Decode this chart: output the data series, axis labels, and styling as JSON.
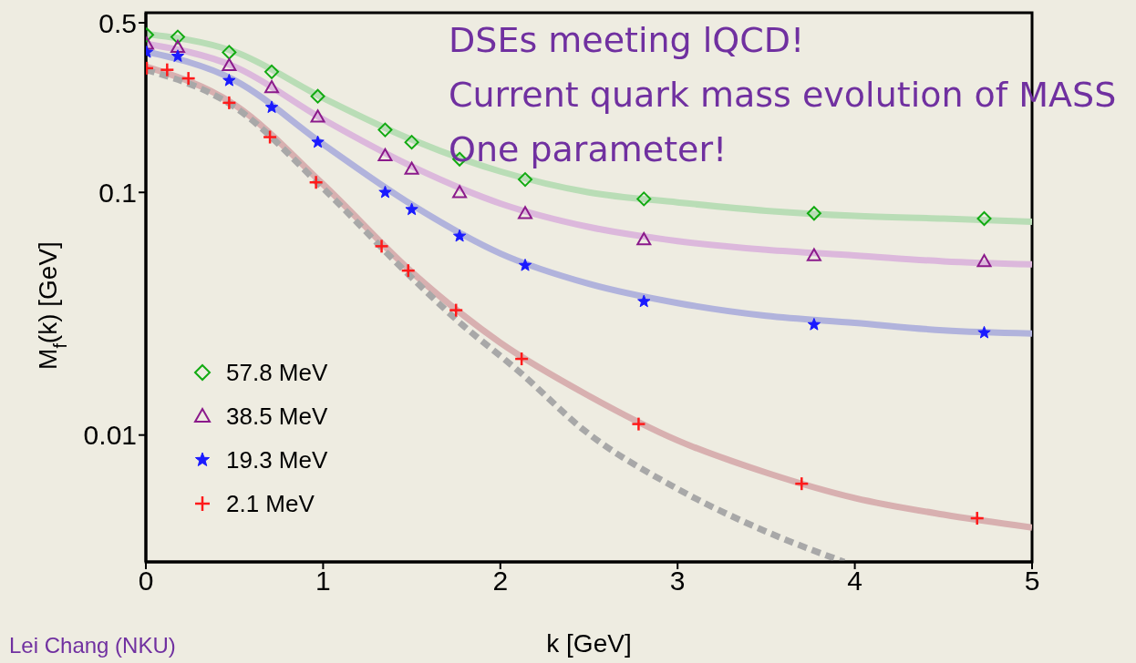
{
  "chart_data": {
    "type": "scatter",
    "xlabel": "k [GeV]",
    "ylabel": "M$_{f}$(k) [GeV]",
    "xlim": [
      0,
      5
    ],
    "xticks": [
      0,
      1,
      2,
      3,
      4,
      5
    ],
    "ylim": [
      0.003,
      0.55
    ],
    "yticks": [
      0.01,
      0.1,
      0.5
    ],
    "log": "y",
    "grid": false,
    "legend": "bottom left",
    "annotations": [
      "DSEs meeting lQCD!",
      "Current quark mass evolution of MASS",
      "One parameter!",
      "Lei Chang (NKU)"
    ],
    "series": [
      {
        "name": "57.8 MeV",
        "color": "#11aa11",
        "marker": "diamond",
        "x": [
          0.005,
          0.18,
          0.47,
          0.71,
          0.97,
          1.35,
          1.5,
          1.77,
          2.14,
          2.81,
          3.77,
          4.73
        ],
        "values": [
          0.446,
          0.437,
          0.378,
          0.314,
          0.249,
          0.181,
          0.161,
          0.137,
          0.113,
          0.094,
          0.082,
          0.078
        ]
      },
      {
        "name": "38.5 MeV",
        "color": "#8b1a8b",
        "marker": "triangle",
        "x": [
          0.005,
          0.18,
          0.47,
          0.71,
          0.97,
          1.35,
          1.5,
          1.77,
          2.14,
          2.81,
          3.77,
          4.73
        ],
        "values": [
          0.409,
          0.397,
          0.334,
          0.271,
          0.205,
          0.142,
          0.125,
          0.1,
          0.082,
          0.064,
          0.055,
          0.052
        ]
      },
      {
        "name": "19.3 MeV",
        "color": "#1a1aff",
        "marker": "star",
        "x": [
          0.005,
          0.18,
          0.47,
          0.71,
          0.97,
          1.35,
          1.5,
          1.77,
          2.14,
          2.81,
          3.77,
          4.73
        ],
        "values": [
          0.378,
          0.364,
          0.289,
          0.224,
          0.161,
          0.1,
          0.085,
          0.066,
          0.05,
          0.0355,
          0.0285,
          0.0264
        ]
      },
      {
        "name": "2.1 MeV",
        "color": "#ff1a1a",
        "marker": "cross",
        "x": [
          0.005,
          0.12,
          0.24,
          0.47,
          0.7,
          0.96,
          1.33,
          1.48,
          1.75,
          2.12,
          2.78,
          3.7,
          4.69
        ],
        "values": [
          0.325,
          0.32,
          0.295,
          0.234,
          0.169,
          0.11,
          0.06,
          0.0476,
          0.0327,
          0.0206,
          0.0111,
          0.0063,
          0.00454
        ]
      },
      {
        "type": "line",
        "color": "#b9ddb6",
        "x": [
          0,
          0.5,
          1,
          1.5,
          2,
          2.5,
          3,
          3.5,
          4,
          4.5,
          5
        ],
        "values": [
          0.45,
          0.38,
          0.245,
          0.165,
          0.122,
          0.1,
          0.091,
          0.084,
          0.08,
          0.078,
          0.0757
        ]
      },
      {
        "type": "line",
        "color": "#dcb8dc",
        "x": [
          0,
          0.5,
          1,
          1.5,
          2,
          2.5,
          3,
          3.5,
          4,
          4.5,
          5
        ],
        "values": [
          0.41,
          0.33,
          0.2,
          0.128,
          0.09,
          0.072,
          0.063,
          0.058,
          0.055,
          0.052,
          0.0505
        ]
      },
      {
        "type": "line",
        "color": "#b1b3dc",
        "x": [
          0,
          0.5,
          1,
          1.5,
          2,
          2.5,
          3,
          3.5,
          4,
          4.5,
          5
        ],
        "values": [
          0.38,
          0.29,
          0.158,
          0.089,
          0.056,
          0.042,
          0.035,
          0.031,
          0.029,
          0.027,
          0.0262
        ]
      },
      {
        "type": "line",
        "color": "#d8b0b0",
        "x": [
          0,
          0.5,
          1,
          1.5,
          2,
          2.5,
          3,
          3.5,
          4,
          4.5,
          5
        ],
        "values": [
          0.33,
          0.23,
          0.108,
          0.047,
          0.024,
          0.0145,
          0.0095,
          0.007,
          0.0055,
          0.0047,
          0.00416
        ]
      },
      {
        "type": "line",
        "color": "#a8a8a8",
        "line_style": "dashed",
        "x": [
          0,
          0.5,
          1,
          1.48,
          1.75,
          2.12,
          2.47,
          3,
          3.5,
          3.94
        ],
        "values": [
          0.32,
          0.225,
          0.104,
          0.046,
          0.03,
          0.0179,
          0.0105,
          0.006,
          0.004,
          0.003
        ]
      }
    ]
  }
}
